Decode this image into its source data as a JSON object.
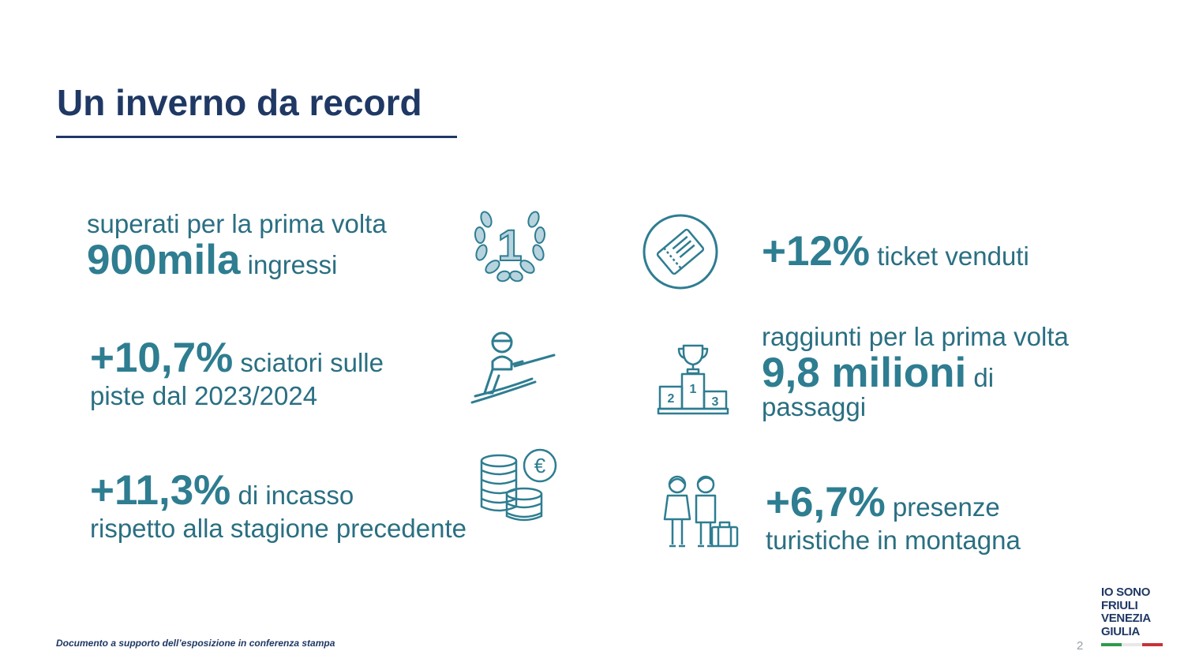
{
  "title": "Un inverno da record",
  "stats": {
    "ingressi": {
      "pre": "superati per la prima volta",
      "big": "900mila",
      "post": " ingressi"
    },
    "sciatori": {
      "big": "+10,7%",
      "post": " sciatori sulle",
      "line2": "piste dal 2023/2024"
    },
    "incasso": {
      "big": "+11,3%",
      "post": " di incasso",
      "line2": "rispetto alla stagione precedente"
    },
    "ticket": {
      "big": "+12%",
      "post": " ticket venduti"
    },
    "passaggi": {
      "pre": "raggiunti per la prima volta",
      "big": "9,8 milioni",
      "post": " di",
      "line2": "passaggi"
    },
    "presenze": {
      "big": "+6,7%",
      "post": " presenze",
      "line2": "turistiche in montagna"
    }
  },
  "icons": {
    "laurel": "laurel-number-one-icon",
    "skier": "skier-icon",
    "coins": "euro-coins-icon",
    "ticket": "ticket-icon",
    "podium": "podium-trophy-icon",
    "tourists": "tourists-luggage-icon"
  },
  "podium_labels": [
    "2",
    "1",
    "3"
  ],
  "laurel_number": "1",
  "euro_symbol": "€",
  "footer": "Documento a supporto dell’esposizione in conferenza stampa",
  "page_number": "2",
  "logo": {
    "lines": [
      "IO SONO",
      "FRIULI",
      "VENEZIA",
      "GIULIA"
    ]
  },
  "colors": {
    "title": "#1f3864",
    "accent": "#2e7d91",
    "flag_green": "#2e9b4a",
    "flag_red": "#c8323a"
  }
}
